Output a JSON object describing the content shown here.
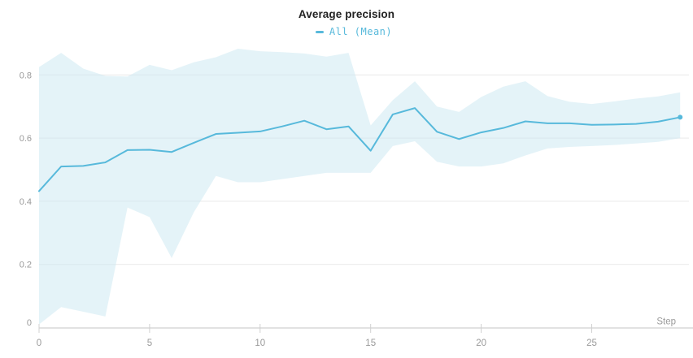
{
  "chart": {
    "title": "Average precision",
    "legend_label": "All (Mean)",
    "xlabel": "Step"
  },
  "colors": {
    "line": "#57b9db",
    "band_fill": "#c9e8f2",
    "title_text": "#222222",
    "tick_text": "#9a9a9a",
    "gridline": "#e9e9e9",
    "axis_line": "#e2e2e2",
    "tick_mark": "#d0d0d0"
  },
  "chart_data": {
    "type": "line",
    "title": "Average precision",
    "xlabel": "Step",
    "ylabel": "",
    "grid": true,
    "legend_position": "top-center",
    "x_ticks": [
      0,
      5,
      10,
      15,
      20,
      25
    ],
    "y_ticks": [
      0,
      0.2,
      0.4,
      0.6,
      0.8
    ],
    "xlim": [
      0,
      29.6
    ],
    "ylim": [
      0,
      0.896
    ],
    "series": [
      {
        "name": "All (Mean)",
        "x": [
          0,
          1,
          2,
          3,
          4,
          5,
          6,
          7,
          8,
          9,
          10,
          11,
          12,
          13,
          14,
          15,
          16,
          17,
          18,
          19,
          20,
          21,
          22,
          23,
          24,
          25,
          26,
          27,
          28,
          29
        ],
        "values": [
          0.432,
          0.51,
          0.512,
          0.523,
          0.562,
          0.563,
          0.556,
          0.585,
          0.613,
          0.617,
          0.621,
          0.637,
          0.655,
          0.628,
          0.637,
          0.56,
          0.675,
          0.695,
          0.62,
          0.597,
          0.618,
          0.632,
          0.653,
          0.647,
          0.647,
          0.642,
          0.643,
          0.645,
          0.652,
          0.666
        ],
        "last_point_marker": true
      }
    ],
    "band": {
      "series": "All (Mean)",
      "x": [
        0,
        1,
        2,
        3,
        4,
        5,
        6,
        7,
        8,
        9,
        10,
        11,
        12,
        13,
        14,
        15,
        16,
        17,
        18,
        19,
        20,
        21,
        22,
        23,
        24,
        25,
        26,
        27,
        28,
        29
      ],
      "upper": [
        0.825,
        0.87,
        0.82,
        0.797,
        0.795,
        0.832,
        0.815,
        0.84,
        0.856,
        0.883,
        0.875,
        0.872,
        0.868,
        0.858,
        0.87,
        0.64,
        0.72,
        0.78,
        0.7,
        0.683,
        0.73,
        0.763,
        0.78,
        0.733,
        0.715,
        0.708,
        0.716,
        0.725,
        0.732,
        0.745
      ],
      "lower": [
        0.01,
        0.065,
        0.05,
        0.035,
        0.38,
        0.35,
        0.22,
        0.365,
        0.48,
        0.46,
        0.46,
        0.47,
        0.48,
        0.49,
        0.49,
        0.49,
        0.575,
        0.59,
        0.525,
        0.51,
        0.51,
        0.52,
        0.545,
        0.567,
        0.572,
        0.575,
        0.578,
        0.583,
        0.588,
        0.6
      ]
    }
  }
}
